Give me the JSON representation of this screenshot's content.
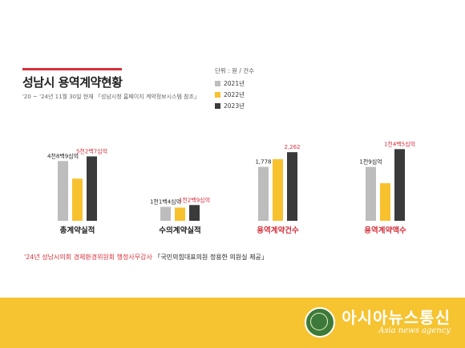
{
  "page": {
    "title": "성남시 용역계약현황",
    "subtitle": "'20 ~ '24년 11월 30일 현재 「성남시청 홈페이지 계약정보시스템 참조」",
    "unit": "단위 : 원 / 건수",
    "source_red": "'24년 성남시의회 경제환경위원회 행정사무감사",
    "source_black": "「국민의힘대표의원 정용한 의원실 제공」"
  },
  "footer": {
    "logo_name": "아시아뉴스통신",
    "logo_sub": "Asia news agency"
  },
  "colors": {
    "accent": "#d6303c",
    "footer": "#f6c331",
    "series_2021": "#bdbdbd",
    "series_2022": "#f8c12e",
    "series_2023": "#3a3a3a"
  },
  "chart_data": [
    {
      "type": "bar",
      "category": "총계약실적",
      "category_color": "#222222",
      "series": [
        {
          "name": "2021년",
          "value": 4890,
          "label": "4천8백9십억"
        },
        {
          "name": "2022년",
          "value": 3450,
          "label": ""
        },
        {
          "name": "2023년",
          "value": 5270,
          "label": "5천2백7십억"
        }
      ],
      "ylim": [
        0,
        7200
      ]
    },
    {
      "type": "bar",
      "category": "수의계약실적",
      "category_color": "#222222",
      "series": [
        {
          "name": "2021년",
          "value": 1140,
          "label": "1천1백4십억"
        },
        {
          "name": "2022년",
          "value": 1080,
          "label": ""
        },
        {
          "name": "2023년",
          "value": 1290,
          "label": "1천2백9십억"
        }
      ],
      "ylim": [
        0,
        7200
      ]
    },
    {
      "type": "bar",
      "category": "용역계약건수",
      "category_color": "#d6303c",
      "series": [
        {
          "name": "2021년",
          "value": 1778,
          "label": "1,778"
        },
        {
          "name": "2022년",
          "value": 2030,
          "label": ""
        },
        {
          "name": "2023년",
          "value": 2262,
          "label": "2,262"
        }
      ],
      "ylim": [
        0,
        2900
      ]
    },
    {
      "type": "bar",
      "category": "용역계약액수",
      "category_color": "#d6303c",
      "series": [
        {
          "name": "2021년",
          "value": 1090,
          "label": "1천9십억"
        },
        {
          "name": "2022년",
          "value": 760,
          "label": ""
        },
        {
          "name": "2023년",
          "value": 1450,
          "label": "1천4백5십억"
        }
      ],
      "ylim": [
        0,
        1780
      ]
    }
  ],
  "legend": [
    {
      "name": "2021년",
      "color": "#bdbdbd"
    },
    {
      "name": "2022년",
      "color": "#f8c12e"
    },
    {
      "name": "2023년",
      "color": "#3a3a3a"
    }
  ]
}
